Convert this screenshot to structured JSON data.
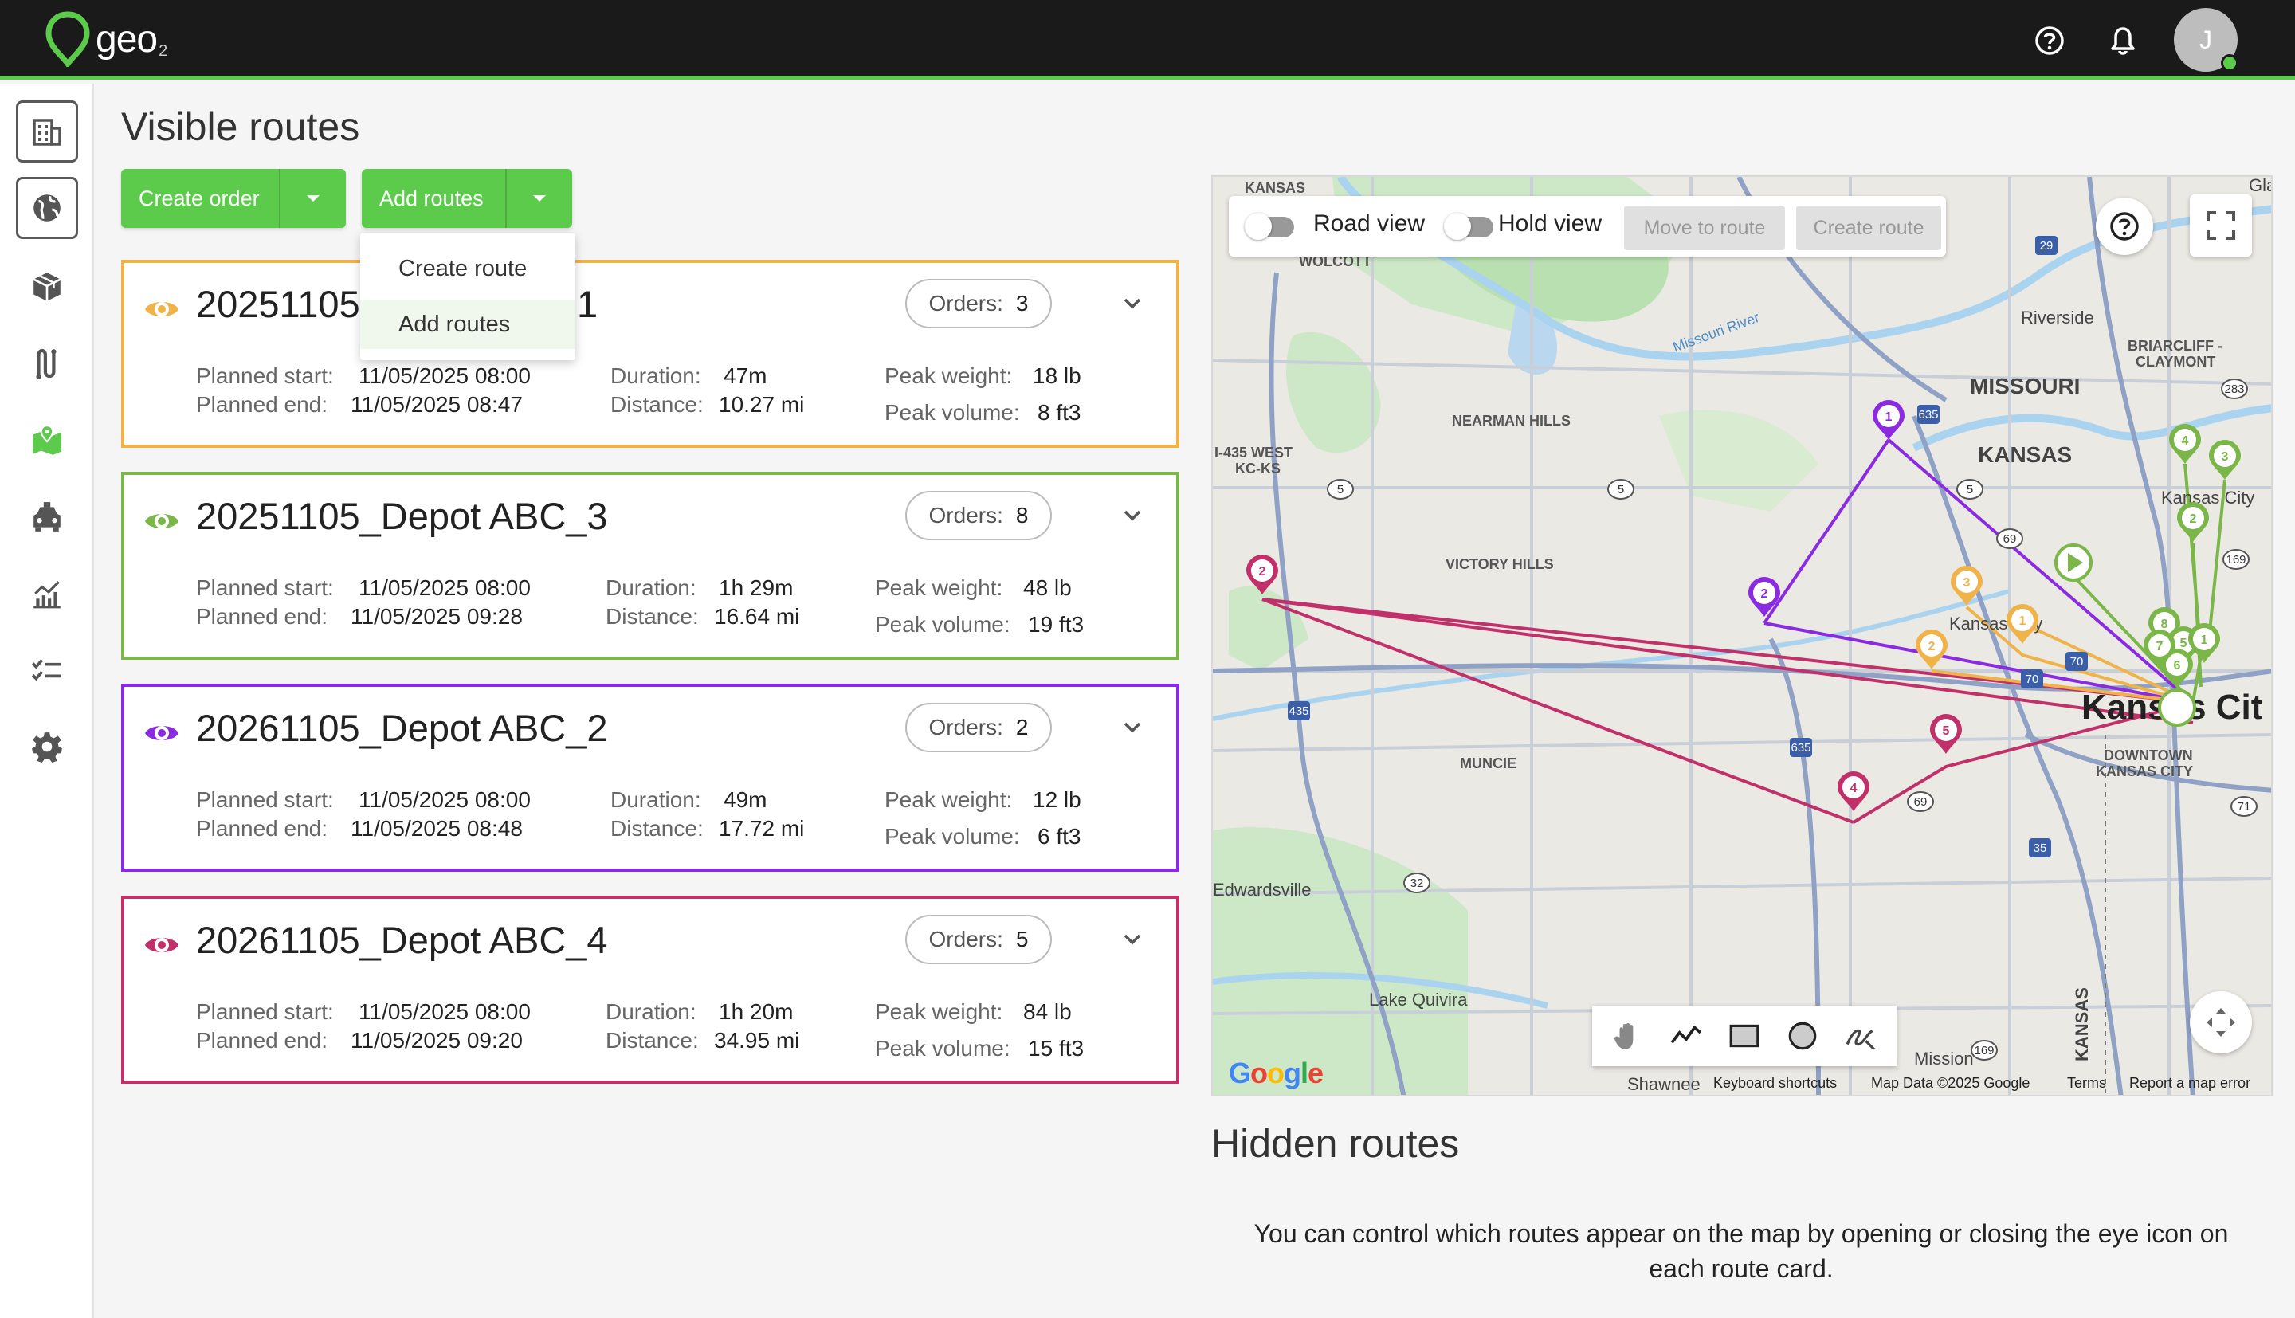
{
  "app": {
    "logo": "geo",
    "logo_sub": "2",
    "user_initial": "J"
  },
  "header_icons": [
    "help-icon",
    "bell-icon"
  ],
  "sidebar": {
    "items": [
      {
        "name": "buildings-icon"
      },
      {
        "name": "globe-icon"
      },
      {
        "name": "package-icon"
      },
      {
        "name": "route-icon"
      },
      {
        "name": "map-icon",
        "active": true
      },
      {
        "name": "vehicle-icon"
      },
      {
        "name": "analytics-icon"
      },
      {
        "name": "checklist-icon"
      },
      {
        "name": "settings-icon"
      }
    ]
  },
  "page": {
    "title": "Visible routes"
  },
  "toolbar": {
    "create_order": "Create order",
    "add_routes": "Add routes"
  },
  "dropdown": {
    "items": [
      "Create route",
      "Add routes"
    ]
  },
  "labels": {
    "orders": "Orders:",
    "planned_start": "Planned start:",
    "planned_end": "Planned end:",
    "duration": "Duration:",
    "distance": "Distance:",
    "peak_weight": "Peak weight:",
    "peak_volume": "Peak volume:"
  },
  "routes": [
    {
      "name": "20251105",
      "name_tail": "1",
      "color": "#f0b34a",
      "orders": "3",
      "planned_start": "11/05/2025 08:00",
      "planned_end": "11/05/2025 08:47",
      "duration": "47m",
      "distance": "10.27 mi",
      "peak_weight": "18 lb",
      "peak_volume": "8 ft3"
    },
    {
      "name": "20251105_Depot ABC_3",
      "color": "#7ab648",
      "orders": "8",
      "planned_start": "11/05/2025 08:00",
      "planned_end": "11/05/2025 09:28",
      "duration": "1h 29m",
      "distance": "16.64 mi",
      "peak_weight": "48 lb",
      "peak_volume": "19 ft3"
    },
    {
      "name": "20261105_Depot ABC_2",
      "color": "#8a2be2",
      "orders": "2",
      "planned_start": "11/05/2025 08:00",
      "planned_end": "11/05/2025 08:48",
      "duration": "49m",
      "distance": "17.72 mi",
      "peak_weight": "12 lb",
      "peak_volume": "6 ft3"
    },
    {
      "name": "20261105_Depot ABC_4",
      "color": "#c2306a",
      "orders": "5",
      "planned_start": "11/05/2025 08:00",
      "planned_end": "11/05/2025 09:20",
      "duration": "1h 20m",
      "distance": "34.95 mi",
      "peak_weight": "84 lb",
      "peak_volume": "15 ft3"
    }
  ],
  "map": {
    "controls": {
      "road_view": "Road view",
      "hold_view": "Hold view",
      "move_to_route": "Move to route",
      "create_route": "Create route"
    },
    "places": {
      "kansas_top": "KANSAS",
      "wolcott": "WOLCOTT",
      "riverside": "Riverside",
      "briarcliff": "BRIARCLIFF -",
      "claymont": "CLAYMONT",
      "missouri": "MISSOURI",
      "kansas": "KANSAS",
      "nearman": "NEARMAN HILLS",
      "i435": "I-435 WEST",
      "kcks": "KC-KS",
      "kansas_city": "Kansas City",
      "victory": "VICTORY HILLS",
      "kansas_city2": "Kansas City",
      "kc_big": "Kansas Cit",
      "downtown": "DOWNTOWN",
      "downtown2": "KANSAS CITY",
      "muncie": "MUNCIE",
      "edwardsville": "Edwardsville",
      "lake_quivira": "Lake Quivira",
      "mission": "Mission",
      "shawnee": "Shawnee",
      "kansas_vert": "KANSAS",
      "missouri_river": "Missouri River",
      "glad": "Glad"
    },
    "shields": [
      "29",
      "635",
      "283",
      "5",
      "5",
      "5",
      "69",
      "169",
      "70",
      "70",
      "435",
      "635",
      "69",
      "35",
      "71",
      "32",
      "169",
      "5"
    ],
    "footer": {
      "google": "Google",
      "shortcuts": "Keyboard shortcuts",
      "data": "Map Data ©2025 Google",
      "terms": "Terms",
      "report": "Report a map error"
    }
  },
  "hidden": {
    "title": "Hidden routes",
    "message": "You can control which routes appear on the map by opening or closing the eye icon on each route card."
  }
}
